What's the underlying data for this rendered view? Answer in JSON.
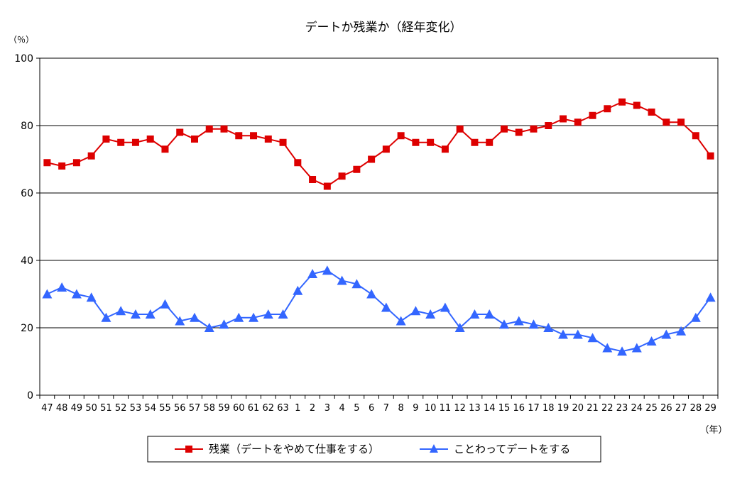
{
  "chart_data": {
    "type": "line",
    "title": "デートか残業か（経年変化）",
    "y_unit": "（％）",
    "x_unit": "（年）",
    "ylim": [
      0,
      100
    ],
    "yticks": [
      0,
      20,
      40,
      60,
      80,
      100
    ],
    "grid": true,
    "legend_position": "bottom",
    "categories": [
      "47",
      "48",
      "49",
      "50",
      "51",
      "52",
      "53",
      "54",
      "55",
      "56",
      "57",
      "58",
      "59",
      "60",
      "61",
      "62",
      "63",
      "1",
      "2",
      "3",
      "4",
      "5",
      "6",
      "7",
      "8",
      "9",
      "10",
      "11",
      "12",
      "13",
      "14",
      "15",
      "16",
      "17",
      "18",
      "19",
      "20",
      "21",
      "22",
      "23",
      "24",
      "25",
      "26",
      "27",
      "28",
      "29"
    ],
    "series": [
      {
        "name": "残業（デートをやめて仕事をする）",
        "color": "#dd0000",
        "marker": "square",
        "values": [
          69,
          68,
          69,
          71,
          76,
          75,
          75,
          76,
          73,
          78,
          76,
          79,
          79,
          77,
          77,
          76,
          75,
          69,
          64,
          62,
          65,
          67,
          70,
          73,
          77,
          75,
          75,
          73,
          79,
          75,
          75,
          79,
          78,
          79,
          80,
          82,
          81,
          83,
          85,
          87,
          86,
          84,
          81,
          81,
          77,
          71
        ]
      },
      {
        "name": "ことわってデートをする",
        "color": "#3366ff",
        "marker": "triangle",
        "values": [
          30,
          32,
          30,
          29,
          23,
          25,
          24,
          24,
          27,
          22,
          23,
          20,
          21,
          23,
          23,
          24,
          24,
          31,
          36,
          37,
          34,
          33,
          30,
          26,
          22,
          25,
          24,
          26,
          20,
          24,
          24,
          21,
          22,
          21,
          20,
          18,
          18,
          17,
          14,
          13,
          14,
          16,
          18,
          19,
          23,
          29
        ]
      }
    ]
  }
}
